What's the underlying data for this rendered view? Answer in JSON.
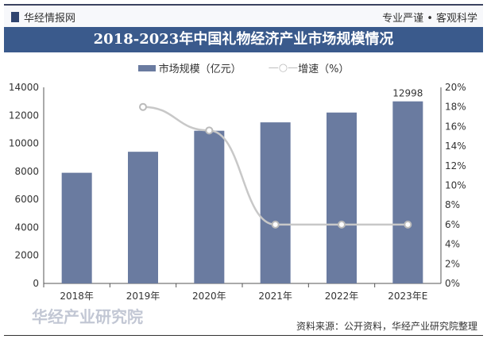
{
  "header": {
    "brand": "华经情报网",
    "slogan": "专业严谨 • 客观科学"
  },
  "chart_data": {
    "type": "bar",
    "title": "2018-2023年中国礼物经济产业市场规模情况",
    "categories": [
      "2018年",
      "2019年",
      "2020年",
      "2021年",
      "2022年",
      "2023年E"
    ],
    "series": [
      {
        "name": "市场规模（亿元）",
        "type": "bar",
        "axis": "left",
        "values": [
          7900,
          9400,
          10900,
          11500,
          12200,
          12998
        ]
      },
      {
        "name": "增速（%）",
        "type": "line",
        "axis": "right",
        "values": [
          null,
          18,
          15.6,
          6,
          6,
          6
        ]
      }
    ],
    "data_labels": {
      "5": "12998"
    },
    "ylim_left": [
      0,
      14000
    ],
    "yticks_left": [
      "0",
      "2000",
      "4000",
      "6000",
      "8000",
      "10000",
      "12000",
      "14000"
    ],
    "ylim_right": [
      0,
      20
    ],
    "yticks_right": [
      "0%",
      "2%",
      "4%",
      "6%",
      "8%",
      "10%",
      "12%",
      "14%",
      "16%",
      "18%",
      "20%"
    ],
    "legend": "top",
    "colors": {
      "bar": "#6a7ba0",
      "line": "#c8c8c8"
    }
  },
  "footer": {
    "source": "资料来源：公开资料，华经产业研究院整理",
    "watermark": "华经产业研究院"
  }
}
